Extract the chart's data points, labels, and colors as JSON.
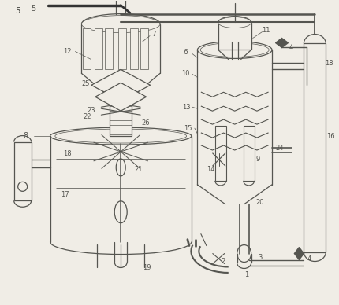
{
  "bg_color": "#f0ede6",
  "line_color": "#555550",
  "lw": 0.9,
  "fig_width": 4.3,
  "fig_height": 3.88
}
